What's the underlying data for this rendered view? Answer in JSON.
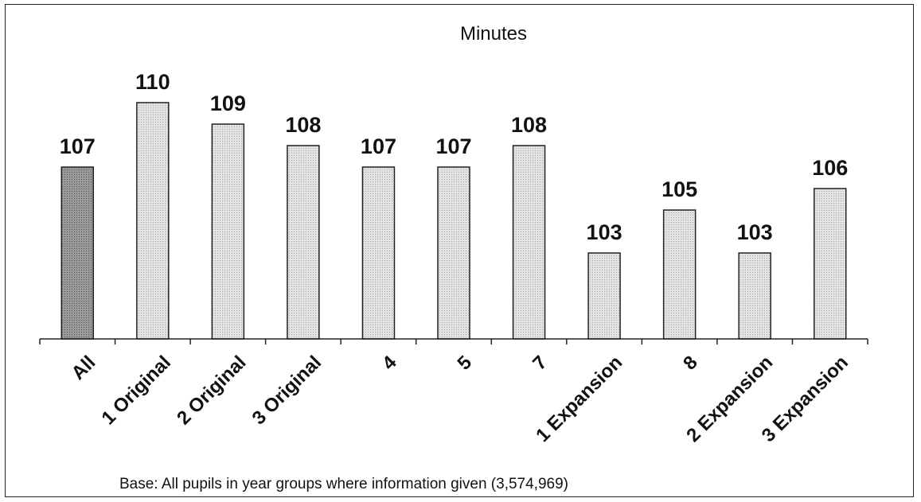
{
  "chart_data": {
    "type": "bar",
    "title": "Minutes",
    "categories": [
      "All",
      "1 Original",
      "2 Original",
      "3 Original",
      "4",
      "5",
      "7",
      "1 Expansion",
      "8",
      "2 Expansion",
      "3 Expansion"
    ],
    "values": [
      107,
      110,
      109,
      108,
      107,
      107,
      108,
      103,
      105,
      103,
      106
    ],
    "value_labels": [
      "107",
      "110",
      "109",
      "108",
      "107",
      "107",
      "108",
      "103",
      "105",
      "103",
      "106"
    ],
    "xlabel": "",
    "ylabel": "",
    "ylim": [
      99,
      111
    ],
    "grid": false,
    "legend": "none",
    "colors": {
      "highlight": "#8a8a8a",
      "bar": "#dcdcdc",
      "outline": "#222222"
    },
    "footnote": "Base: All pupils in year groups where information given (3,574,969)"
  }
}
